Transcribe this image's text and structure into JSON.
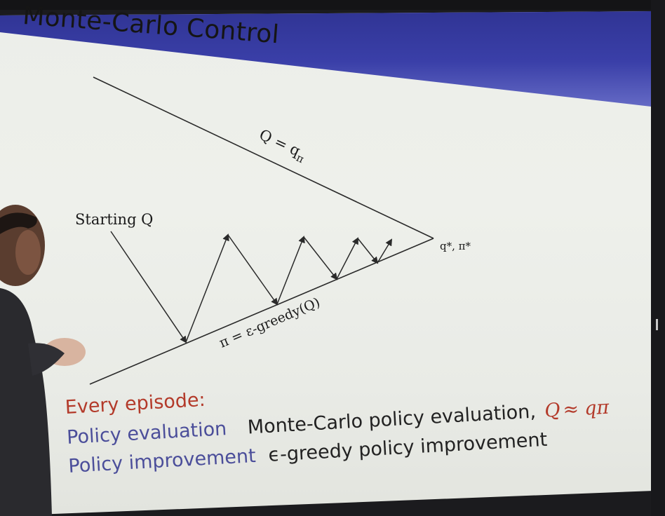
{
  "slide": {
    "title": "Monte-Carlo Control",
    "diagram": {
      "upper_line_label": "Q = q",
      "upper_line_subscript": "π",
      "starting_label": "Starting Q",
      "lower_line_label": "π = ε-greedy(Q)",
      "apex_label": "q*, π*"
    },
    "every_episode_label": "Every episode:",
    "rows": [
      {
        "term": "Policy evaluation",
        "description": "Monte-Carlo policy evaluation,",
        "approx_lhs": "Q",
        "approx_symbol": "≈",
        "approx_rhs": "qπ"
      },
      {
        "term": "Policy improvement",
        "description": "ϵ-greedy policy improvement"
      }
    ]
  },
  "colors": {
    "header_blue": "#3a3fa8",
    "accent_red": "#b33a2a",
    "term_blue": "#4b4e9a"
  }
}
